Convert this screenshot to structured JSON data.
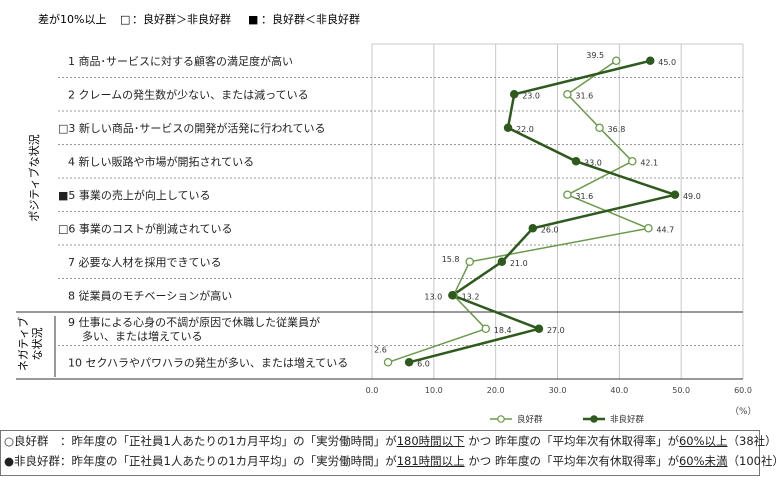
{
  "legend_top": {
    "threshold": "差が10%以上",
    "open_box": "□",
    "good_gt_bad": "：良好群＞非良好群",
    "filled_box": "■",
    "good_lt_bad": "：良好群＜非良好群"
  },
  "group_labels": {
    "positive": "ポジティブな状況",
    "negative": "ネガティブな状況"
  },
  "unit": "（%）",
  "colors": {
    "good": "#6a9a4a",
    "bad": "#2f5a1e",
    "grid": "#c8c8c8"
  },
  "chart_data": {
    "type": "line",
    "orientation": "horizontal",
    "categories": [
      "1 商品･サービスに対する顧客の満足度が高い",
      "2 クレームの発生数が少ない、または減っている",
      "□3 新しい商品･サービスの開発が活発に行われている",
      "4 新しい販路や市場が開拓されている",
      "■5 事業の売上が向上している",
      "□6 事業のコストが削減されている",
      "7 必要な人材を採用できている",
      "8 従業員のモチベーションが高い",
      "9 仕事による心身の不調が原因で休職した従業員が多い、または増えている",
      "10 セクハラやパワハラの発生が多い、または増えている"
    ],
    "category_lines": [
      [
        "1 商品･サービスに対する顧客の満足度が高い"
      ],
      [
        "2 クレームの発生数が少ない、または減っている"
      ],
      [
        "□3 新しい商品･サービスの開発が活発に行われている"
      ],
      [
        "4 新しい販路や市場が開拓されている"
      ],
      [
        "■5 事業の売上が向上している"
      ],
      [
        "□6 事業のコストが削減されている"
      ],
      [
        "7 必要な人材を採用できている"
      ],
      [
        "8 従業員のモチベーションが高い"
      ],
      [
        "9 仕事による心身の不調が原因で休職した従業員が",
        "多い、または増えている"
      ],
      [
        "10 セクハラやパワハラの発生が多い、または増えている"
      ]
    ],
    "series": [
      {
        "name": "良好群",
        "marker": "open",
        "values": [
          39.5,
          31.6,
          36.8,
          42.1,
          31.6,
          44.7,
          15.8,
          13.2,
          18.4,
          2.6
        ]
      },
      {
        "name": "非良好群",
        "marker": "filled",
        "values": [
          45.0,
          23.0,
          22.0,
          33.0,
          49.0,
          26.0,
          21.0,
          13.0,
          27.0,
          6.0
        ]
      }
    ],
    "xlim": [
      0,
      60
    ],
    "xticks": [
      "0.0",
      "10.0",
      "20.0",
      "30.0",
      "40.0",
      "50.0",
      "60.0"
    ],
    "grid": true,
    "legend_position": "bottom"
  },
  "caption": {
    "line1": {
      "marker": "○",
      "name": "良好群",
      "text1": "　：昨年度の「正社員1人あたりの1カ月平均」の「実労働時間」が",
      "emph1": "180時間以下",
      "text2": "  かつ 昨年度の「平均年次有休取得率」が",
      "emph2": "60%以上",
      "text3": "（38社）"
    },
    "line2": {
      "marker": "●",
      "name": "非良好群",
      "text1": "：昨年度の「正社員1人あたりの1カ月平均」の「実労働時間」が",
      "emph1": "181時間以上",
      "text2": "  かつ 昨年度の「平均年次有休取得率」が",
      "emph2": "60%未満",
      "text3": "（100社）"
    }
  }
}
